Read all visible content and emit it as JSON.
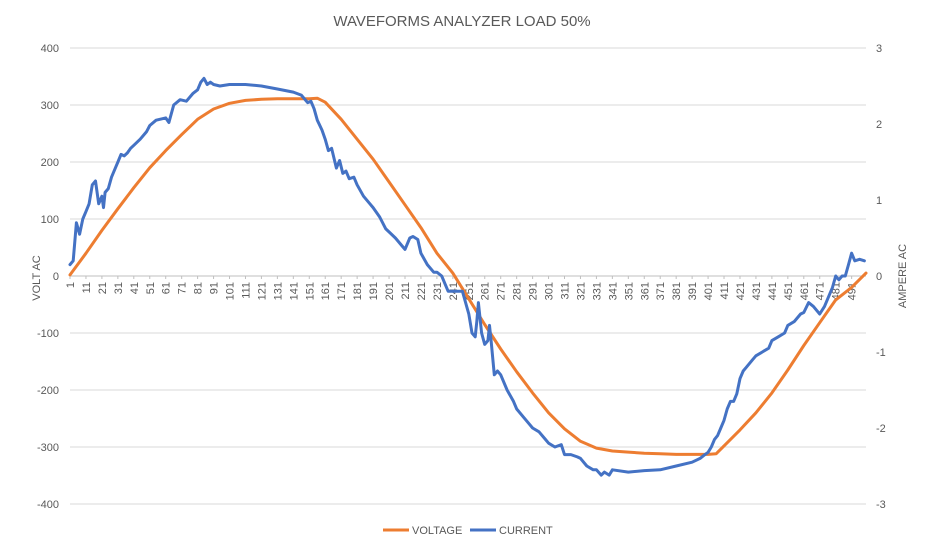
{
  "chart_data": {
    "type": "line",
    "title": "WAVEFORMS ANALYZER LOAD 50%",
    "ylabel": "VOLT AC",
    "y2label": "AMPERE AC",
    "ylim": [
      -400,
      400
    ],
    "y2lim": [
      -3,
      3
    ],
    "yticks": [
      400,
      300,
      200,
      100,
      0,
      -100,
      -200,
      -300,
      -400
    ],
    "y2ticks": [
      3,
      2,
      1,
      0,
      -1,
      -2,
      -3
    ],
    "xticks": [
      1,
      11,
      21,
      31,
      41,
      51,
      61,
      71,
      81,
      91,
      101,
      111,
      121,
      131,
      141,
      151,
      161,
      171,
      181,
      191,
      201,
      211,
      221,
      231,
      241,
      251,
      261,
      271,
      281,
      291,
      301,
      311,
      321,
      331,
      341,
      351,
      361,
      371,
      381,
      391,
      401,
      411,
      421,
      431,
      441,
      451,
      461,
      471,
      481,
      491
    ],
    "xlim": [
      1,
      500
    ],
    "grid": true,
    "legend": "bottom",
    "colors": {
      "voltage": "#ED7D31",
      "current": "#4472C4",
      "grid": "#D9D9D9",
      "axis": "#BFBFBF"
    },
    "series": [
      {
        "name": "VOLTAGE",
        "axis": "left",
        "x": [
          1,
          11,
          21,
          31,
          41,
          51,
          61,
          71,
          81,
          91,
          101,
          111,
          121,
          131,
          141,
          151,
          156,
          161,
          171,
          181,
          191,
          201,
          211,
          221,
          231,
          241,
          251,
          261,
          271,
          281,
          291,
          301,
          311,
          321,
          331,
          341,
          351,
          361,
          371,
          381,
          391,
          401,
          406,
          411,
          421,
          431,
          441,
          451,
          461,
          471,
          481,
          491,
          500
        ],
        "values": [
          2,
          40,
          80,
          118,
          155,
          190,
          220,
          248,
          275,
          293,
          303,
          308,
          310,
          311,
          311,
          311,
          312,
          305,
          275,
          240,
          205,
          165,
          125,
          85,
          40,
          5,
          -40,
          -85,
          -128,
          -168,
          -205,
          -240,
          -268,
          -290,
          -302,
          -307,
          -309,
          -311,
          -312,
          -313,
          -313,
          -313,
          -312,
          -298,
          -270,
          -240,
          -205,
          -165,
          -122,
          -82,
          -42,
          -20,
          5
        ]
      },
      {
        "name": "CURRENT",
        "axis": "right",
        "x": [
          1,
          3,
          5,
          7,
          9,
          11,
          13,
          15,
          17,
          19,
          21,
          22,
          23,
          25,
          27,
          29,
          31,
          33,
          35,
          37,
          39,
          41,
          45,
          49,
          51,
          55,
          61,
          63,
          66,
          70,
          74,
          78,
          81,
          83,
          85,
          87,
          89,
          91,
          95,
          101,
          111,
          121,
          131,
          141,
          146,
          150,
          152,
          154,
          156,
          159,
          161,
          163,
          165,
          168,
          170,
          172,
          174,
          176,
          179,
          181,
          185,
          189,
          191,
          195,
          199,
          201,
          205,
          209,
          211,
          214,
          216,
          219,
          221,
          225,
          229,
          231,
          234,
          238,
          241,
          244,
          247,
          249,
          251,
          253,
          255,
          256,
          257,
          259,
          261,
          263,
          264,
          265,
          267,
          269,
          271,
          275,
          279,
          281,
          285,
          289,
          291,
          295,
          299,
          301,
          305,
          309,
          311,
          315,
          319,
          321,
          325,
          329,
          331,
          334,
          336,
          339,
          341,
          351,
          361,
          371,
          381,
          391,
          396,
          399,
          401,
          403,
          405,
          407,
          409,
          411,
          413,
          415,
          417,
          419,
          421,
          423,
          425,
          429,
          431,
          435,
          439,
          441,
          445,
          449,
          451,
          455,
          459,
          461,
          464,
          467,
          469,
          471,
          474,
          476,
          479,
          481,
          483,
          485,
          487,
          489,
          491,
          493,
          496,
          499
        ],
        "values": [
          0.15,
          0.2,
          0.7,
          0.55,
          0.75,
          0.85,
          0.95,
          1.2,
          1.25,
          0.95,
          1.05,
          0.9,
          1.1,
          1.15,
          1.3,
          1.4,
          1.5,
          1.6,
          1.58,
          1.62,
          1.68,
          1.72,
          1.8,
          1.9,
          1.98,
          2.05,
          2.08,
          2.02,
          2.25,
          2.32,
          2.3,
          2.4,
          2.45,
          2.55,
          2.6,
          2.52,
          2.55,
          2.52,
          2.5,
          2.52,
          2.52,
          2.5,
          2.46,
          2.42,
          2.38,
          2.28,
          2.3,
          2.2,
          2.05,
          1.92,
          1.8,
          1.65,
          1.68,
          1.42,
          1.52,
          1.35,
          1.38,
          1.28,
          1.3,
          1.2,
          1.05,
          0.95,
          0.9,
          0.78,
          0.62,
          0.58,
          0.5,
          0.4,
          0.35,
          0.5,
          0.52,
          0.48,
          0.3,
          0.15,
          0.05,
          0.05,
          0.0,
          -0.2,
          -0.2,
          -0.2,
          -0.2,
          -0.35,
          -0.5,
          -0.75,
          -0.8,
          -0.6,
          -0.35,
          -0.75,
          -0.9,
          -0.85,
          -0.65,
          -0.85,
          -1.3,
          -1.25,
          -1.3,
          -1.5,
          -1.65,
          -1.75,
          -1.85,
          -1.95,
          -2.0,
          -2.05,
          -2.15,
          -2.2,
          -2.25,
          -2.22,
          -2.35,
          -2.35,
          -2.38,
          -2.4,
          -2.5,
          -2.55,
          -2.55,
          -2.62,
          -2.58,
          -2.62,
          -2.55,
          -2.58,
          -2.56,
          -2.55,
          -2.5,
          -2.45,
          -2.4,
          -2.35,
          -2.32,
          -2.25,
          -2.15,
          -2.1,
          -2.0,
          -1.9,
          -1.75,
          -1.65,
          -1.65,
          -1.55,
          -1.35,
          -1.25,
          -1.2,
          -1.1,
          -1.05,
          -1.0,
          -0.95,
          -0.85,
          -0.8,
          -0.75,
          -0.65,
          -0.6,
          -0.5,
          -0.48,
          -0.35,
          -0.4,
          -0.45,
          -0.5,
          -0.4,
          -0.3,
          -0.15,
          0.0,
          -0.05,
          0.0,
          0.0,
          0.15,
          0.3,
          0.2,
          0.22,
          0.2
        ]
      }
    ]
  }
}
